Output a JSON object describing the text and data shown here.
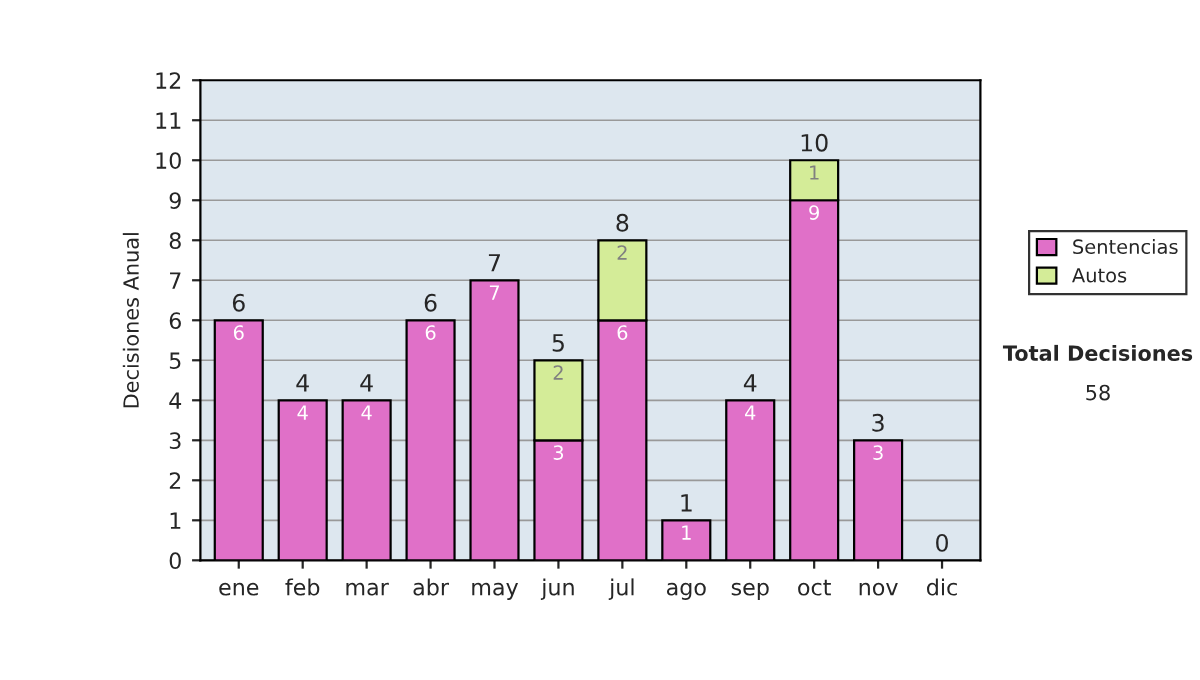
{
  "chart_data": {
    "type": "bar",
    "stacked": true,
    "ylabel": "Decisiones Anual",
    "categories": [
      "ene",
      "feb",
      "mar",
      "abr",
      "may",
      "jun",
      "jul",
      "ago",
      "sep",
      "oct",
      "nov",
      "dic"
    ],
    "series": [
      {
        "name": "Sentencias",
        "color": "#e070c8",
        "values": [
          6,
          4,
          4,
          6,
          7,
          3,
          6,
          1,
          4,
          9,
          3,
          0
        ],
        "value_labels": [
          "6",
          "4",
          "4",
          "6",
          "7",
          "3",
          "6",
          "1",
          "4",
          "9",
          "3",
          null
        ]
      },
      {
        "name": "Autos",
        "color": "#d4ec98",
        "values": [
          0,
          0,
          0,
          0,
          0,
          2,
          2,
          0,
          0,
          1,
          0,
          0
        ],
        "value_labels": [
          null,
          null,
          null,
          null,
          null,
          "2",
          "2",
          null,
          null,
          "1",
          null,
          null
        ]
      }
    ],
    "totals": [
      "6",
      "4",
      "4",
      "6",
      "7",
      "5",
      "8",
      "1",
      "4",
      "10",
      "3",
      "0"
    ],
    "ylim": [
      0,
      12
    ],
    "yticks": [
      0,
      1,
      2,
      3,
      4,
      5,
      6,
      7,
      8,
      9,
      10,
      11,
      12
    ],
    "grid": "y",
    "legend": "right",
    "annotations": [
      "Total Decisiones",
      "58"
    ]
  }
}
